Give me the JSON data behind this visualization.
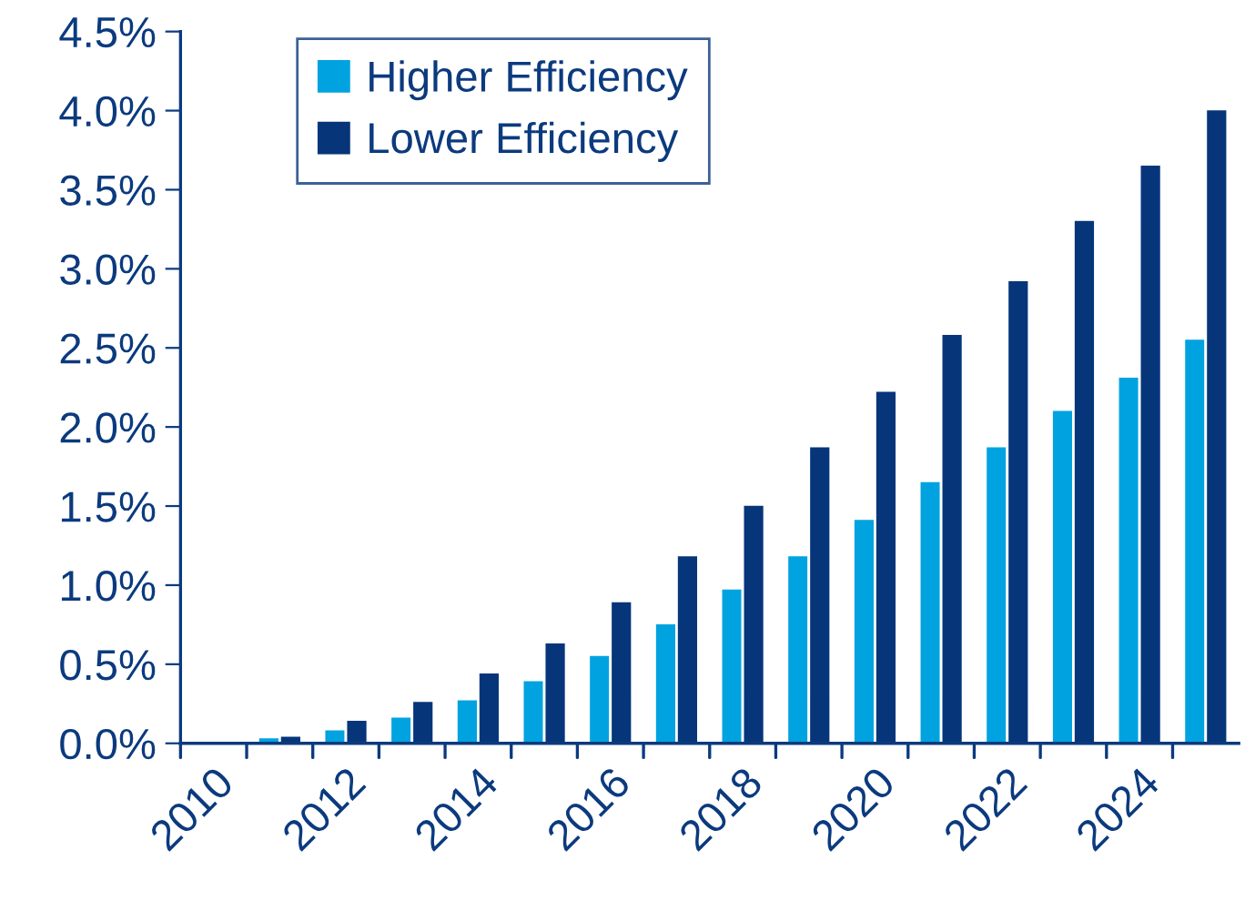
{
  "chart_data": {
    "type": "bar",
    "categories": [
      "2010",
      null,
      "2012",
      null,
      "2014",
      null,
      "2016",
      null,
      "2018",
      null,
      "2020",
      null,
      "2022",
      null,
      "2024",
      null
    ],
    "series": [
      {
        "name": "Higher Efficiency",
        "color": "#00a3e0",
        "values": [
          null,
          0.04,
          0.09,
          0.17,
          0.28,
          0.4,
          0.56,
          0.76,
          0.98,
          1.19,
          1.42,
          1.66,
          1.88,
          2.11,
          2.32,
          2.56
        ]
      },
      {
        "name": "Lower Efficiency",
        "color": "#06357a",
        "values": [
          0.01,
          0.05,
          0.15,
          0.27,
          0.45,
          0.64,
          0.9,
          1.19,
          1.51,
          1.88,
          2.23,
          2.59,
          2.93,
          3.31,
          3.66,
          4.01
        ]
      }
    ],
    "ylim": [
      0,
      4.5
    ],
    "yticks": [
      {
        "value": 0,
        "label": "0.0%"
      },
      {
        "value": 0.5,
        "label": "0.5%"
      },
      {
        "value": 1,
        "label": "1.0%"
      },
      {
        "value": 1.5,
        "label": "1.5%"
      },
      {
        "value": 2,
        "label": "2.0%"
      },
      {
        "value": 2.5,
        "label": "2.5%"
      },
      {
        "value": 3,
        "label": "3.0%"
      },
      {
        "value": 3.5,
        "label": "3.5%"
      },
      {
        "value": 4,
        "label": "4.0%"
      },
      {
        "value": 4.5,
        "label": "4.5%"
      }
    ],
    "grid": false,
    "legend": "top"
  }
}
